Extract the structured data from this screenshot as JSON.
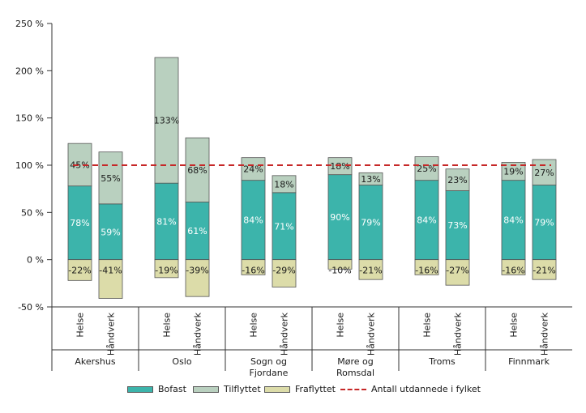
{
  "chart_data": {
    "type": "bar",
    "stacked": true,
    "ylim": [
      -50,
      250
    ],
    "y_ticks": [
      -50,
      0,
      50,
      100,
      150,
      200,
      250
    ],
    "y_tick_labels": [
      "-50 %",
      "0 %",
      "50 %",
      "100 %",
      "150 %",
      "200 %",
      "250 %"
    ],
    "sub_categories": [
      "Helse",
      "Håndverk"
    ],
    "groups": [
      {
        "label": [
          "Akershus"
        ],
        "bars": [
          {
            "sub": "Helse",
            "bofast": 78,
            "tilflyttet": 45,
            "fraflyttet": -22,
            "labels": {
              "bofast": "78%",
              "tilflyttet": "45%",
              "fraflyttet": "-22%"
            }
          },
          {
            "sub": "Håndverk",
            "bofast": 59,
            "tilflyttet": 55,
            "fraflyttet": -41,
            "labels": {
              "bofast": "59%",
              "tilflyttet": "55%",
              "fraflyttet": "-41%"
            }
          }
        ]
      },
      {
        "label": [
          "Oslo"
        ],
        "bars": [
          {
            "sub": "Helse",
            "bofast": 81,
            "tilflyttet": 133,
            "fraflyttet": -19,
            "labels": {
              "bofast": "81%",
              "tilflyttet": "133%",
              "fraflyttet": "-19%"
            }
          },
          {
            "sub": "Håndverk",
            "bofast": 61,
            "tilflyttet": 68,
            "fraflyttet": -39,
            "labels": {
              "bofast": "61%",
              "tilflyttet": "68%",
              "fraflyttet": "-39%"
            }
          }
        ]
      },
      {
        "label": [
          "Sogn og",
          "Fjordane"
        ],
        "bars": [
          {
            "sub": "Helse",
            "bofast": 84,
            "tilflyttet": 24,
            "fraflyttet": -16,
            "labels": {
              "bofast": "84%",
              "tilflyttet": "24%",
              "fraflyttet": "-16%"
            }
          },
          {
            "sub": "Håndverk",
            "bofast": 71,
            "tilflyttet": 18,
            "fraflyttet": -29,
            "labels": {
              "bofast": "71%",
              "tilflyttet": "18%",
              "fraflyttet": "-29%"
            }
          }
        ]
      },
      {
        "label": [
          "Møre og",
          "Romsdal"
        ],
        "bars": [
          {
            "sub": "Helse",
            "bofast": 90,
            "tilflyttet": 18,
            "fraflyttet": -10,
            "labels": {
              "bofast": "90%",
              "tilflyttet": "18%",
              "fraflyttet": "-10%"
            }
          },
          {
            "sub": "Håndverk",
            "bofast": 79,
            "tilflyttet": 13,
            "fraflyttet": -21,
            "labels": {
              "bofast": "79%",
              "tilflyttet": "13%",
              "fraflyttet": "-21%"
            }
          }
        ]
      },
      {
        "label": [
          "Troms"
        ],
        "bars": [
          {
            "sub": "Helse",
            "bofast": 84,
            "tilflyttet": 25,
            "fraflyttet": -16,
            "labels": {
              "bofast": "84%",
              "tilflyttet": "25%",
              "fraflyttet": "-16%"
            }
          },
          {
            "sub": "Håndverk",
            "bofast": 73,
            "tilflyttet": 23,
            "fraflyttet": -27,
            "labels": {
              "bofast": "73%",
              "tilflyttet": "23%",
              "fraflyttet": "-27%"
            }
          }
        ]
      },
      {
        "label": [
          "Finnmark"
        ],
        "bars": [
          {
            "sub": "Helse",
            "bofast": 84,
            "tilflyttet": 19,
            "fraflyttet": -16,
            "labels": {
              "bofast": "84%",
              "tilflyttet": "19%",
              "fraflyttet": "-16%"
            }
          },
          {
            "sub": "Håndverk",
            "bofast": 79,
            "tilflyttet": 27,
            "fraflyttet": -21,
            "labels": {
              "bofast": "79%",
              "tilflyttet": "27%",
              "fraflyttet": "-21%"
            }
          }
        ]
      }
    ],
    "reference_line": {
      "value": 100,
      "label": "Antall utdannede i fylket",
      "color": "#c62828"
    },
    "series": [
      {
        "key": "bofast",
        "name": "Bofast",
        "color": "#3cb4ab"
      },
      {
        "key": "tilflyttet",
        "name": "Tilflyttet",
        "color": "#b9d0bf"
      },
      {
        "key": "fraflyttet",
        "name": "Fraflyttet",
        "color": "#dcdca9"
      }
    ]
  },
  "legend": {
    "bofast": "Bofast",
    "tilflyttet": "Tilflyttet",
    "fraflyttet": "Fraflyttet",
    "line": "Antall utdannede i fylket"
  }
}
